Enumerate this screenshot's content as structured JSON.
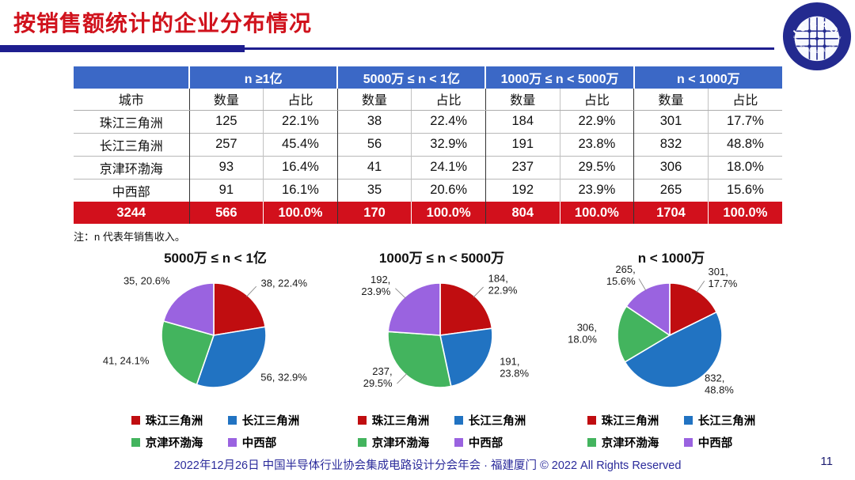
{
  "title": "按销售额统计的企业分布情况",
  "logo": {
    "text": "ICCAD",
    "ring_text": "中国半导体行业协会集成电路设计分会"
  },
  "table": {
    "corner_label": "城市",
    "groups": [
      "n ≥1亿",
      "5000万 ≤ n < 1亿",
      "1000万 ≤ n < 5000万",
      "n < 1000万"
    ],
    "sub_headers": [
      "数量",
      "占比"
    ],
    "rows": [
      {
        "city": "珠江三角洲",
        "cells": [
          "125",
          "22.1%",
          "38",
          "22.4%",
          "184",
          "22.9%",
          "301",
          "17.7%"
        ]
      },
      {
        "city": "长江三角洲",
        "cells": [
          "257",
          "45.4%",
          "56",
          "32.9%",
          "191",
          "23.8%",
          "832",
          "48.8%"
        ]
      },
      {
        "city": "京津环渤海",
        "cells": [
          "93",
          "16.4%",
          "41",
          "24.1%",
          "237",
          "29.5%",
          "306",
          "18.0%"
        ]
      },
      {
        "city": "中西部",
        "cells": [
          "91",
          "16.1%",
          "35",
          "20.6%",
          "192",
          "23.9%",
          "265",
          "15.6%"
        ]
      }
    ],
    "total_row": {
      "city": "3244",
      "cells": [
        "566",
        "100.0%",
        "170",
        "100.0%",
        "804",
        "100.0%",
        "1704",
        "100.0%"
      ]
    }
  },
  "note": "注：n 代表年销售收入。",
  "legend": {
    "items": [
      "珠江三角洲",
      "长江三角洲",
      "京津环渤海",
      "中西部"
    ]
  },
  "colors": {
    "series": [
      "#c00d10",
      "#2173c2",
      "#43b45e",
      "#9a63e0"
    ],
    "title_red": "#d0121c",
    "accent_navy": "#1e1e8f",
    "header_blue": "#3b68c6",
    "total_red": "#d2101c",
    "footer_blue": "#2b2b9b"
  },
  "chart_data": [
    {
      "type": "pie",
      "title": "5000万 ≤ n < 1亿",
      "legend_position": "bottom",
      "slices": [
        {
          "name": "珠江三角洲",
          "value": 38,
          "pct": 22.4,
          "label_lines": [
            "38, 22.4%"
          ],
          "leader": true
        },
        {
          "name": "长江三角洲",
          "value": 56,
          "pct": 32.9,
          "label_lines": [
            "56, 32.9%"
          ],
          "leader": false
        },
        {
          "name": "京津环渤海",
          "value": 41,
          "pct": 24.1,
          "label_lines": [
            "41, 24.1%"
          ],
          "leader": false
        },
        {
          "name": "中西部",
          "value": 35,
          "pct": 20.6,
          "label_lines": [
            "35, 20.6%"
          ],
          "leader": false
        }
      ]
    },
    {
      "type": "pie",
      "title": "1000万 ≤ n < 5000万",
      "legend_position": "bottom",
      "slices": [
        {
          "name": "珠江三角洲",
          "value": 184,
          "pct": 22.9,
          "label_lines": [
            "184,",
            "22.9%"
          ],
          "leader": true
        },
        {
          "name": "长江三角洲",
          "value": 191,
          "pct": 23.8,
          "label_lines": [
            "191,",
            "23.8%"
          ],
          "leader": false
        },
        {
          "name": "京津环渤海",
          "value": 237,
          "pct": 29.5,
          "label_lines": [
            "237,",
            "29.5%"
          ],
          "leader": true
        },
        {
          "name": "中西部",
          "value": 192,
          "pct": 23.9,
          "label_lines": [
            "192,",
            "23.9%"
          ],
          "leader": true
        }
      ]
    },
    {
      "type": "pie",
      "title": "n < 1000万",
      "legend_position": "bottom",
      "slices": [
        {
          "name": "珠江三角洲",
          "value": 301,
          "pct": 17.7,
          "label_lines": [
            "301,",
            "17.7%"
          ],
          "leader": true
        },
        {
          "name": "长江三角洲",
          "value": 832,
          "pct": 48.8,
          "label_lines": [
            "832,",
            "48.8%"
          ],
          "leader": false
        },
        {
          "name": "京津环渤海",
          "value": 306,
          "pct": 18.0,
          "label_lines": [
            "306,",
            "18.0%"
          ],
          "leader": false
        },
        {
          "name": "中西部",
          "value": 265,
          "pct": 15.6,
          "label_lines": [
            "265,",
            "15.6%"
          ],
          "leader": true
        }
      ]
    }
  ],
  "footer": {
    "text": "2022年12月26日 中国半导体行业协会集成电路设计分会年会 · 福建厦门 © 2022 All Rights Reserved",
    "page": "11"
  }
}
